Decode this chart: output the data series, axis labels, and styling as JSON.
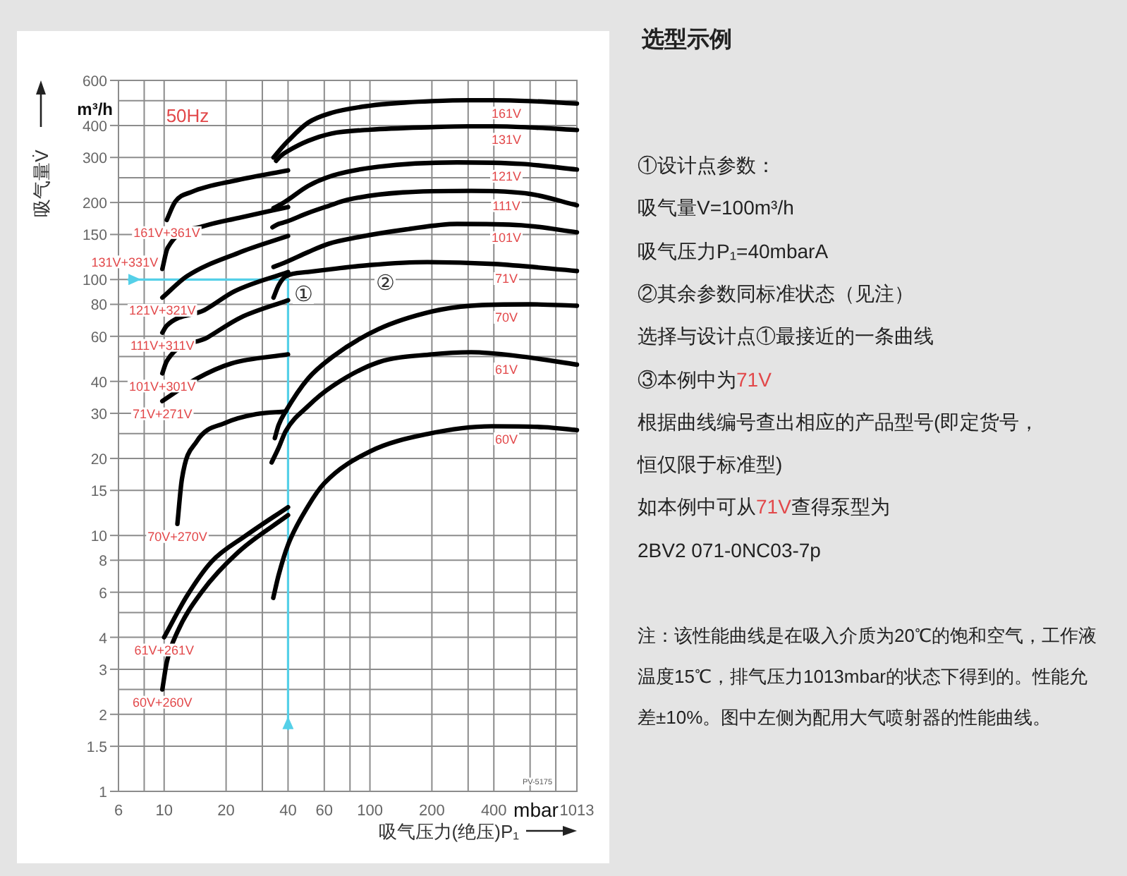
{
  "chart_data": [
    {
      "type": "line",
      "xlabel": "吸气压力(绝压)P₁",
      "ylabel": "吸气量V̇",
      "log": "xy",
      "grid": true,
      "xlim": [
        6,
        1013
      ],
      "ylim": [
        1,
        600
      ],
      "xticks": [
        6,
        {
          "value": 8,
          "label": null
        },
        10,
        20,
        {
          "value": 30,
          "label": null
        },
        40,
        60,
        {
          "value": 80,
          "label": null
        },
        100,
        200,
        {
          "value": 300,
          "label": null
        },
        400,
        {
          "value": 600,
          "label": null
        },
        {
          "value": 800,
          "label": null
        },
        1013
      ],
      "yticks": [
        1,
        1.5,
        2,
        {
          "value": 2.5,
          "label": null
        },
        3,
        4,
        {
          "value": 5,
          "label": null
        },
        6,
        8,
        10,
        15,
        20,
        {
          "value": 25,
          "label": null
        },
        30,
        40,
        {
          "value": 50,
          "label": null
        },
        60,
        80,
        100,
        150,
        200,
        {
          "value": 250,
          "label": null
        },
        300,
        400,
        {
          "value": 500,
          "label": null
        },
        600
      ],
      "annotations": [
        "50Hz",
        "m³/h",
        "mbar",
        "PV-5175",
        "①",
        "②"
      ],
      "series": [
        {
          "color": "#55d0e8",
          "x": [
            6.7,
            40,
            40
          ],
          "values": [
            100,
            100,
            1.75
          ]
        },
        {
          "name": "161V+361V",
          "color": "#000000",
          "x": [
            10.3,
            11.3,
            13.6,
            22.9,
            40
          ],
          "values": [
            171,
            201,
            220,
            245,
            267
          ]
        },
        {
          "name": "131V+331V",
          "color": "#000000",
          "x": [
            9.8,
            10.4,
            15.7,
            22.9,
            40
          ],
          "values": [
            110,
            133,
            162,
            174,
            192
          ]
        },
        {
          "name": "121V+321V",
          "color": "#000000",
          "x": [
            9.8,
            12.9,
            22.9,
            40
          ],
          "values": [
            85,
            103,
            127,
            148
          ]
        },
        {
          "name": "111V+311V",
          "color": "#000000",
          "x": [
            9.8,
            10.3,
            15.7,
            22,
            40
          ],
          "values": [
            62,
            66,
            76,
            90,
            107
          ]
        },
        {
          "name": "101V+301V",
          "color": "#000000",
          "x": [
            9.8,
            10.3,
            16.3,
            23.5,
            40
          ],
          "values": [
            43,
            48,
            59.5,
            71,
            83
          ]
        },
        {
          "name": "71V+271V",
          "color": "#000000",
          "x": [
            9.8,
            14.4,
            21.2,
            40
          ],
          "values": [
            33.5,
            41,
            47,
            51
          ]
        },
        {
          "name": "70V+270V",
          "color": "#000000",
          "x": [
            11.6,
            12.2,
            14.4,
            20,
            28,
            39
          ],
          "values": [
            11.1,
            16.6,
            23.3,
            27.6,
            29.8,
            30.5
          ]
        },
        {
          "name": "61V+261V",
          "color": "#000000",
          "x": [
            10,
            12.9,
            17,
            25,
            40
          ],
          "values": [
            4,
            5.8,
            7.9,
            10,
            12.9
          ]
        },
        {
          "name": "60V+260V",
          "color": "#000000",
          "x": [
            9.8,
            10.3,
            11.6,
            15.2,
            22.9,
            40
          ],
          "values": [
            2.5,
            3.2,
            4.2,
            6,
            8.6,
            12
          ]
        },
        {
          "name": "161V",
          "color": "#000000",
          "x": [
            34,
            37,
            40,
            50,
            65,
            100,
            150,
            200,
            300,
            400,
            600,
            1013
          ],
          "values": [
            300,
            325,
            348,
            410,
            448,
            478,
            492,
            498,
            502,
            502,
            498,
            487
          ]
        },
        {
          "name": "131V",
          "color": "#000000",
          "x": [
            35,
            37,
            40,
            50,
            65,
            100,
            200,
            300,
            400,
            600,
            1013
          ],
          "values": [
            291,
            305,
            318,
            348,
            372,
            385,
            394,
            397,
            397,
            393,
            384
          ]
        },
        {
          "name": "121V",
          "color": "#000000",
          "x": [
            34,
            37,
            40,
            50,
            66,
            110,
            265,
            545,
            1013
          ],
          "values": [
            190,
            197,
            205,
            232,
            255,
            276,
            287,
            283,
            269
          ]
        },
        {
          "name": "111V",
          "color": "#000000",
          "x": [
            33.6,
            36,
            39,
            50,
            63,
            78,
            145,
            310,
            600,
            1013
          ],
          "values": [
            160,
            165,
            168,
            182,
            194,
            205,
            219,
            222,
            216,
            195
          ]
        },
        {
          "name": "101V",
          "color": "#000000",
          "x": [
            34,
            39,
            50,
            63,
            86,
            150,
            265,
            545,
            1013
          ],
          "values": [
            112,
            117,
            128,
            138,
            146,
            157,
            165,
            163,
            153
          ]
        },
        {
          "name": "71V",
          "color": "#000000",
          "x": [
            34,
            36,
            39,
            50,
            66,
            100,
            190,
            400,
            1013
          ],
          "values": [
            85,
            95,
            103,
            107,
            110,
            114,
            117,
            115,
            108
          ]
        },
        {
          "name": "70V",
          "color": "#000000",
          "x": [
            34.5,
            36,
            39,
            50,
            66,
            110,
            200,
            310,
            600,
            1013
          ],
          "values": [
            24,
            27,
            30.6,
            41,
            50,
            64,
            75,
            79,
            80,
            79
          ]
        },
        {
          "name": "61V",
          "color": "#000000",
          "x": [
            33.3,
            36,
            39,
            50,
            66,
            110,
            200,
            310,
            550,
            1013
          ],
          "values": [
            19.3,
            22,
            25.6,
            32,
            38.4,
            47.5,
            51,
            52,
            50,
            46.5
          ]
        },
        {
          "name": "60V",
          "color": "#000000",
          "x": [
            33.9,
            36,
            40,
            50,
            60,
            100,
            190,
            390,
            700,
            1013
          ],
          "values": [
            5.7,
            7,
            9.2,
            13,
            16,
            21.3,
            24.9,
            26.7,
            26.5,
            25.8
          ]
        }
      ]
    },
    {
      "type": "other",
      "title": "选型示例",
      "annotations": [
        "①设计点参数：",
        "吸气量V=100m³/h",
        "吸气压力P₁=40mbarA",
        "②其余参数同标准状态（见注）",
        "选择与设计点①最接近的一条曲线",
        "③本例中为",
        "71V",
        "根据曲线编号查出相应的产品型号(即定货号，",
        "恒仅限于标准型)",
        "如本例中可从",
        "71V",
        "查得泵型为",
        "2BV2 071-0NC03-7p",
        "注：该性能曲线是在吸入介质为20℃的饱和空气，工作液温度15℃，排气压力1013mbar的状态下得到的。性能允差±10%。图中左侧为配用大气喷射器的性能曲线。"
      ]
    }
  ]
}
